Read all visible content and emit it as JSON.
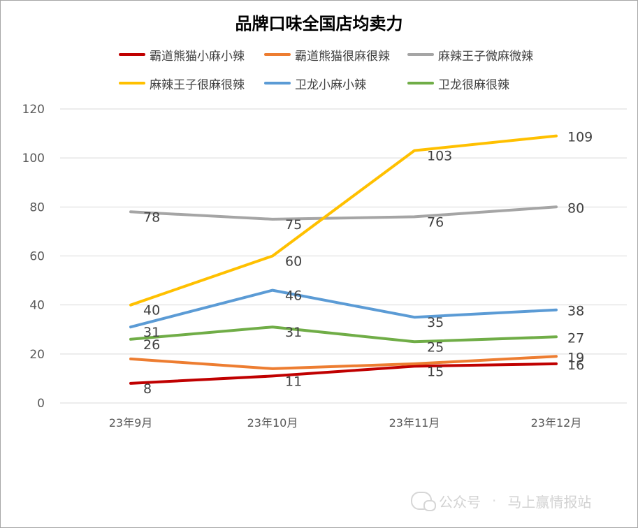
{
  "chart_data": {
    "type": "line",
    "title": "品牌口味全国店均卖力",
    "categories": [
      "23年9月",
      "23年10月",
      "23年11月",
      "23年12月"
    ],
    "ylim": [
      0,
      120
    ],
    "yticks": [
      0,
      20,
      40,
      60,
      80,
      100,
      120
    ],
    "grid": true,
    "legend_placement": "top",
    "series": [
      {
        "name": "霸道熊猫小麻小辣",
        "color": "#c00000",
        "values": [
          8,
          11,
          15,
          16
        ]
      },
      {
        "name": "霸道熊猫很麻很辣",
        "color": "#ed7d31",
        "values": [
          18,
          14,
          16,
          19
        ]
      },
      {
        "name": "麻辣王子微麻微辣",
        "color": "#a5a5a5",
        "values": [
          78,
          75,
          76,
          80
        ]
      },
      {
        "name": "麻辣王子很麻很辣",
        "color": "#ffc000",
        "values": [
          40,
          60,
          103,
          109
        ]
      },
      {
        "name": "卫龙小麻小辣",
        "color": "#5b9bd5",
        "values": [
          31,
          46,
          35,
          38
        ]
      },
      {
        "name": "卫龙很麻很辣",
        "color": "#70ad47",
        "values": [
          26,
          31,
          25,
          27
        ]
      }
    ],
    "data_labels": [
      {
        "series": 0,
        "values": [
          8,
          11,
          15,
          16
        ]
      },
      {
        "series": 1,
        "values": [
          null,
          null,
          null,
          19
        ]
      },
      {
        "series": 2,
        "values": [
          78,
          75,
          76,
          80
        ]
      },
      {
        "series": 3,
        "values": [
          40,
          60,
          103,
          109
        ]
      },
      {
        "series": 4,
        "values": [
          31,
          46,
          35,
          38
        ]
      },
      {
        "series": 5,
        "values": [
          26,
          31,
          25,
          27
        ]
      }
    ]
  },
  "watermark": {
    "icon": "wechat-icon",
    "prefix": "公众号",
    "sep": "·",
    "name": "马上赢情报站"
  }
}
